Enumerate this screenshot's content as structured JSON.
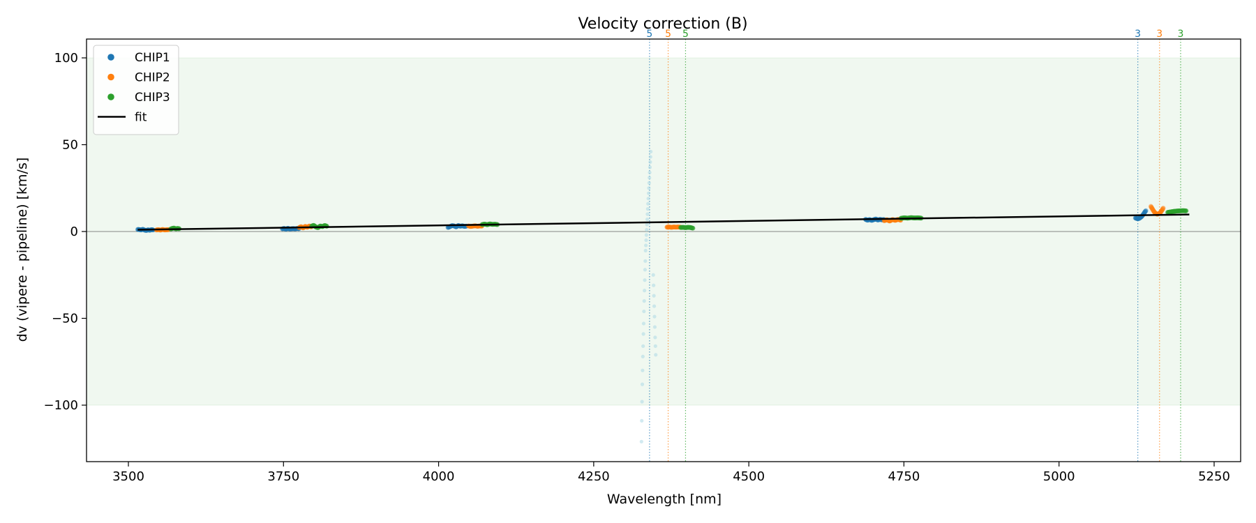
{
  "chart_data": {
    "type": "scatter",
    "title": "Velocity correction (B)",
    "xlabel": "Wavelength [nm]",
    "ylabel": "dv (vipere - pipeline) [km/s]",
    "xlim": [
      3435,
      5295
    ],
    "ylim": [
      -133,
      112
    ],
    "xticks": [
      3500,
      3750,
      4000,
      4250,
      4500,
      4750,
      5000,
      5250
    ],
    "yticks": [
      100,
      50,
      0,
      -50,
      -100
    ],
    "xtick_labels": [
      "3500",
      "3750",
      "4000",
      "4250",
      "4500",
      "4750",
      "5000",
      "5250"
    ],
    "ytick_labels": [
      "100",
      "50",
      "0",
      "−50",
      "−100"
    ],
    "shaded_band": {
      "y_min": -100,
      "y_max": 100,
      "color": "#2ca02c"
    },
    "zero_line": true,
    "legend": {
      "position": "top-left",
      "entries": [
        {
          "label": "CHIP1",
          "kind": "marker",
          "color": "#1f77b4"
        },
        {
          "label": "CHIP2",
          "kind": "marker",
          "color": "#ff7f0e"
        },
        {
          "label": "CHIP3",
          "kind": "marker",
          "color": "#2ca02c"
        },
        {
          "label": "fit",
          "kind": "line",
          "color": "#000000"
        }
      ]
    },
    "series": [
      {
        "name": "CHIP1",
        "color": "#1f77b4",
        "segments": [
          {
            "x0": 3515,
            "x1": 3540,
            "y": [
              1.2,
              1.1,
              0.9,
              1.3,
              0.8,
              0.6,
              1.0,
              0.7,
              1.1,
              0.9
            ]
          },
          {
            "x0": 3748,
            "x1": 3775,
            "y": [
              1.5,
              1.8,
              1.3,
              1.9,
              1.4,
              1.6,
              1.7,
              1.5,
              1.8,
              1.6
            ]
          },
          {
            "x0": 4015,
            "x1": 4045,
            "y": [
              2.3,
              2.8,
              3.4,
              3.2,
              2.6,
              3.5,
              3.0,
              3.3,
              2.9,
              3.1
            ]
          },
          {
            "x0": 4688,
            "x1": 4718,
            "y": [
              7.0,
              6.5,
              6.9,
              6.4,
              6.8,
              7.2,
              6.6,
              7.0,
              6.7,
              6.9
            ]
          },
          {
            "x0": 5123,
            "x1": 5140,
            "y": [
              7.8,
              7.5,
              7.3,
              7.6,
              8.1,
              8.8,
              9.8,
              11.0,
              12.0
            ]
          }
        ]
      },
      {
        "name": "CHIP2",
        "color": "#ff7f0e",
        "segments": [
          {
            "x0": 3545,
            "x1": 3565,
            "y": [
              0.9,
              1.1,
              0.8,
              1.2,
              0.9,
              1.0,
              1.1
            ]
          },
          {
            "x0": 3775,
            "x1": 3795,
            "y": [
              2.2,
              2.8,
              2.0,
              3.0,
              2.4,
              3.2,
              2.6
            ]
          },
          {
            "x0": 4048,
            "x1": 4070,
            "y": [
              3.2,
              2.9,
              3.1,
              3.3,
              3.0,
              3.2,
              3.1
            ]
          },
          {
            "x0": 4368,
            "x1": 4390,
            "y": [
              2.5,
              2.6,
              2.4,
              2.6,
              2.5,
              2.6,
              2.5
            ]
          },
          {
            "x0": 4718,
            "x1": 4745,
            "y": [
              6.2,
              6.8,
              6.0,
              6.9,
              6.4,
              7.0,
              6.5
            ]
          },
          {
            "x0": 5148,
            "x1": 5168,
            "y": [
              14.5,
              13.0,
              11.5,
              10.5,
              10.0,
              10.2,
              10.8,
              12.0,
              13.5
            ]
          }
        ]
      },
      {
        "name": "CHIP3",
        "color": "#2ca02c",
        "segments": [
          {
            "x0": 3568,
            "x1": 3582,
            "y": [
              1.4,
              1.8,
              2.0,
              1.5,
              1.8,
              1.6
            ]
          },
          {
            "x0": 3795,
            "x1": 3820,
            "y": [
              3.0,
              3.6,
              2.6,
              2.2,
              3.2,
              2.8,
              3.5,
              3.0
            ]
          },
          {
            "x0": 4070,
            "x1": 4095,
            "y": [
              4.0,
              4.3,
              3.9,
              4.4,
              4.1,
              4.2,
              4.0
            ]
          },
          {
            "x0": 4390,
            "x1": 4410,
            "y": [
              2.3,
              2.4,
              2.2,
              2.4,
              2.3,
              1.9
            ]
          },
          {
            "x0": 4745,
            "x1": 4778,
            "y": [
              7.6,
              7.9,
              7.7,
              8.0,
              7.8,
              7.9,
              7.7
            ]
          },
          {
            "x0": 5175,
            "x1": 5205,
            "y": [
              11.0,
              11.3,
              11.6,
              11.8,
              11.9,
              12.0,
              11.9
            ]
          }
        ]
      }
    ],
    "faint_points": {
      "color": "#add8e6",
      "y": [
        46,
        43,
        40,
        37,
        34,
        31,
        28,
        25,
        22,
        19,
        16,
        13,
        10,
        7,
        4,
        1,
        -2,
        -5,
        -8,
        -11,
        -17,
        -22,
        -28,
        -34,
        -40,
        -46,
        -53,
        -59,
        -66,
        -72,
        -80,
        -88,
        -98,
        -109,
        -121
      ],
      "x_from": 4342,
      "x_to": 4327,
      "right_y": [
        -25,
        -31,
        -37,
        -43,
        -49,
        -55,
        -61,
        -66,
        -71
      ],
      "right_x_from": 4346,
      "right_x_to": 4350
    },
    "fit": {
      "x": [
        3515,
        5210
      ],
      "y": [
        1.0,
        9.8
      ],
      "color": "#000000"
    },
    "markers": [
      {
        "x": 4340,
        "label": "5",
        "color": "#1f77b4"
      },
      {
        "x": 4370,
        "label": "5",
        "color": "#ff7f0e"
      },
      {
        "x": 4398,
        "label": "5",
        "color": "#2ca02c"
      },
      {
        "x": 5127,
        "label": "3",
        "color": "#1f77b4"
      },
      {
        "x": 5162,
        "label": "3",
        "color": "#ff7f0e"
      },
      {
        "x": 5196,
        "label": "3",
        "color": "#2ca02c"
      }
    ]
  }
}
